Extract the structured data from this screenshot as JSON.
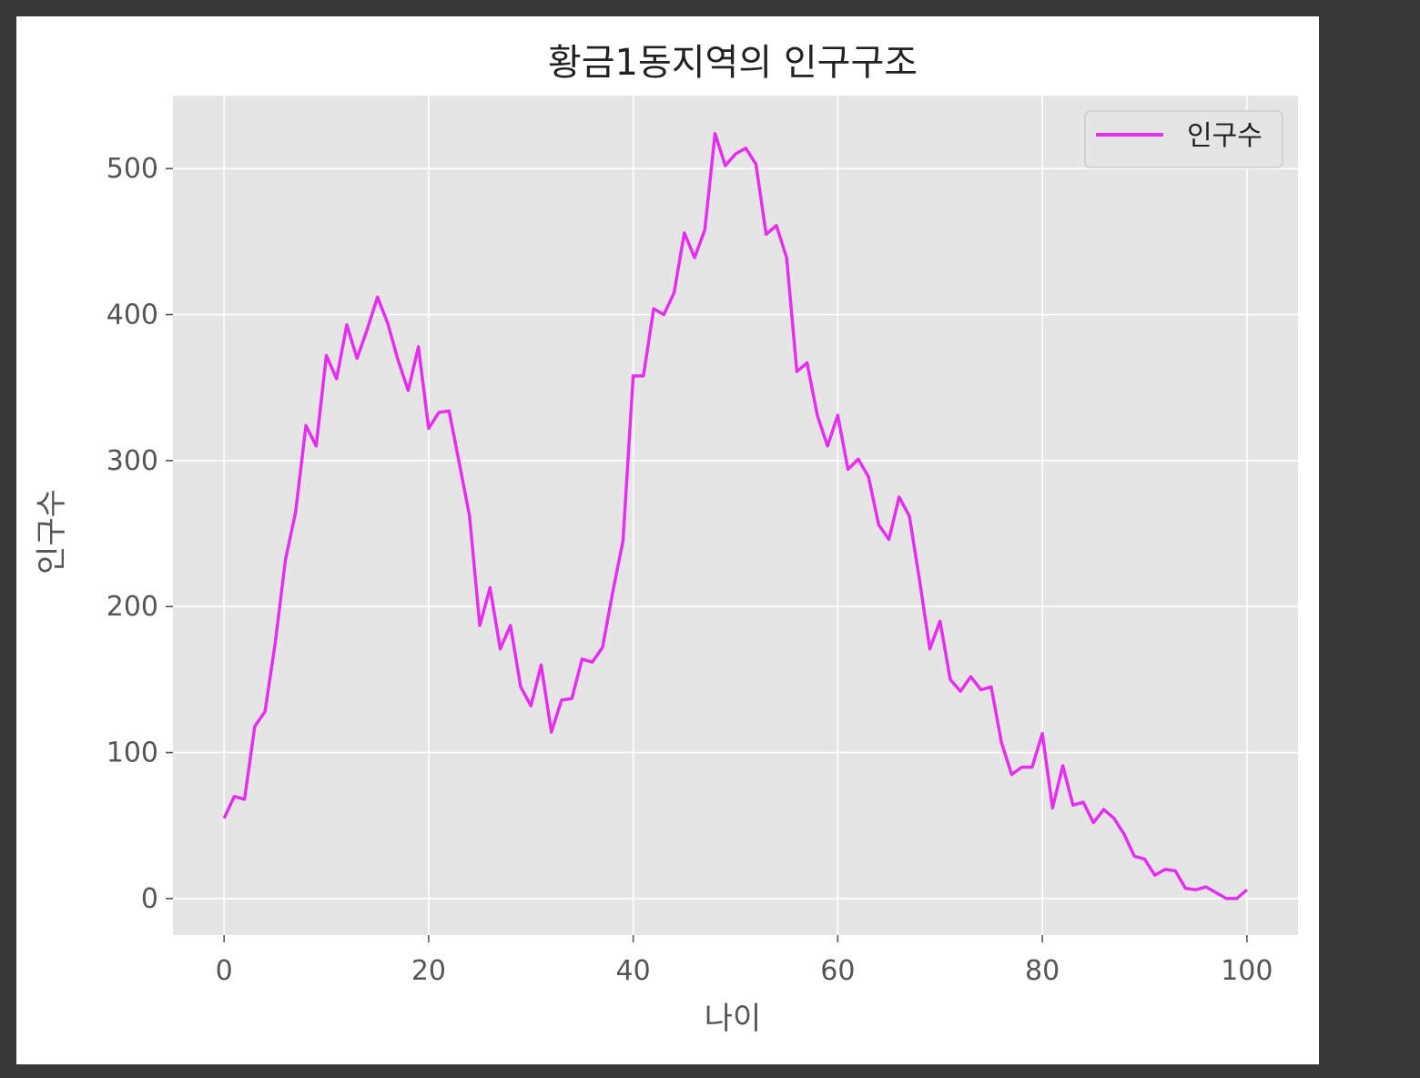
{
  "chart_data": {
    "type": "line",
    "title": "황금1동지역의 인구구조",
    "xlabel": "나이",
    "ylabel": "인구수",
    "xlim": [
      -5,
      105
    ],
    "ylim": [
      -25,
      550
    ],
    "xticks": [
      0,
      20,
      40,
      60,
      80,
      100
    ],
    "yticks": [
      0,
      100,
      200,
      300,
      400,
      500
    ],
    "grid": true,
    "legend_position": "top-right",
    "series": [
      {
        "name": "인구수",
        "color": "#e62ef2",
        "x": [
          0,
          1,
          2,
          3,
          4,
          5,
          6,
          7,
          8,
          9,
          10,
          11,
          12,
          13,
          14,
          15,
          16,
          17,
          18,
          19,
          20,
          21,
          22,
          23,
          24,
          25,
          26,
          27,
          28,
          29,
          30,
          31,
          32,
          33,
          34,
          35,
          36,
          37,
          38,
          39,
          40,
          41,
          42,
          43,
          44,
          45,
          46,
          47,
          48,
          49,
          50,
          51,
          52,
          53,
          54,
          55,
          56,
          57,
          58,
          59,
          60,
          61,
          62,
          63,
          64,
          65,
          66,
          67,
          68,
          69,
          70,
          71,
          72,
          73,
          74,
          75,
          76,
          77,
          78,
          79,
          80,
          81,
          82,
          83,
          84,
          85,
          86,
          87,
          88,
          89,
          90,
          91,
          92,
          93,
          94,
          95,
          96,
          97,
          98,
          99,
          100
        ],
        "values": [
          55,
          70,
          68,
          118,
          128,
          175,
          232,
          265,
          324,
          310,
          372,
          356,
          393,
          370,
          390,
          412,
          394,
          369,
          348,
          378,
          322,
          333,
          334,
          298,
          262,
          187,
          213,
          171,
          187,
          145,
          132,
          160,
          114,
          136,
          137,
          164,
          162,
          172,
          210,
          245,
          358,
          358,
          404,
          400,
          415,
          456,
          439,
          458,
          524,
          502,
          510,
          514,
          503,
          455,
          461,
          439,
          361,
          367,
          331,
          310,
          331,
          294,
          301,
          289,
          256,
          246,
          275,
          262,
          218,
          171,
          190,
          150,
          142,
          152,
          143,
          145,
          107,
          85,
          90,
          90,
          113,
          62,
          91,
          64,
          66,
          52,
          61,
          55,
          44,
          29,
          27,
          16,
          20,
          19,
          7,
          6,
          8,
          4,
          0,
          0,
          6
        ]
      }
    ]
  }
}
